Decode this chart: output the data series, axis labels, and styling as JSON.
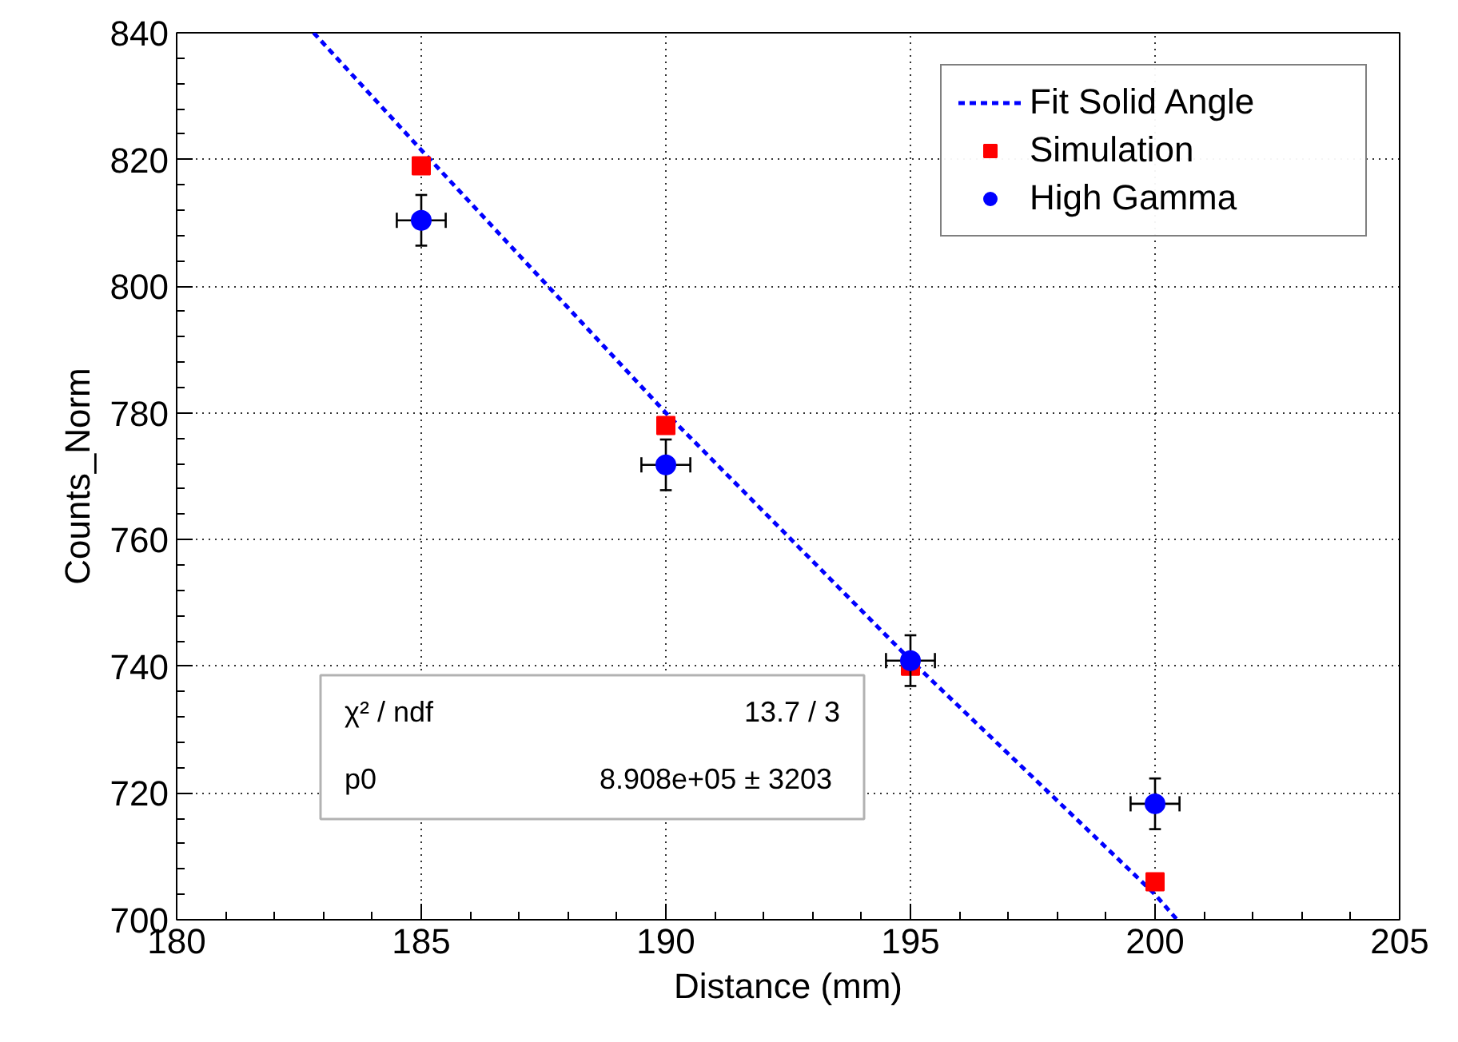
{
  "chart_data": {
    "type": "scatter",
    "xlabel": "Distance (mm)",
    "ylabel": "Counts_Norm",
    "xlim": [
      180,
      205
    ],
    "xticks": [
      180,
      185,
      190,
      195,
      200,
      205
    ],
    "ylim": [
      700,
      840
    ],
    "yticks": [
      700,
      720,
      740,
      760,
      780,
      800,
      820,
      840
    ],
    "grid": true,
    "legend": "top right",
    "series": [
      {
        "name": "Fit Solid Angle",
        "type": "line",
        "line_style": "dashed",
        "marker": "none",
        "color": "#0000ff",
        "x": [
          182.8,
          185,
          190,
          195,
          200,
          200.45
        ],
        "values": [
          840,
          821.5,
          780,
          741,
          704,
          700
        ]
      },
      {
        "name": "Simulation",
        "marker": "square",
        "color": "#ff0000",
        "x": [
          185,
          190,
          195,
          200
        ],
        "values": [
          819,
          778,
          740,
          706
        ]
      },
      {
        "name": "High Gamma",
        "marker": "circle",
        "color": "#0000ff",
        "x": [
          185,
          190,
          195,
          200
        ],
        "values": [
          810.4,
          771.8,
          740.9,
          718.3
        ],
        "errors": [
          4,
          4,
          4,
          4
        ],
        "xerrors": [
          0.5,
          0.5,
          0.5,
          0.5
        ]
      }
    ],
    "annotations": [
      "χ² / ndf",
      "13.7 / 3",
      "p0",
      "8.908e+05 ±  3203"
    ]
  }
}
